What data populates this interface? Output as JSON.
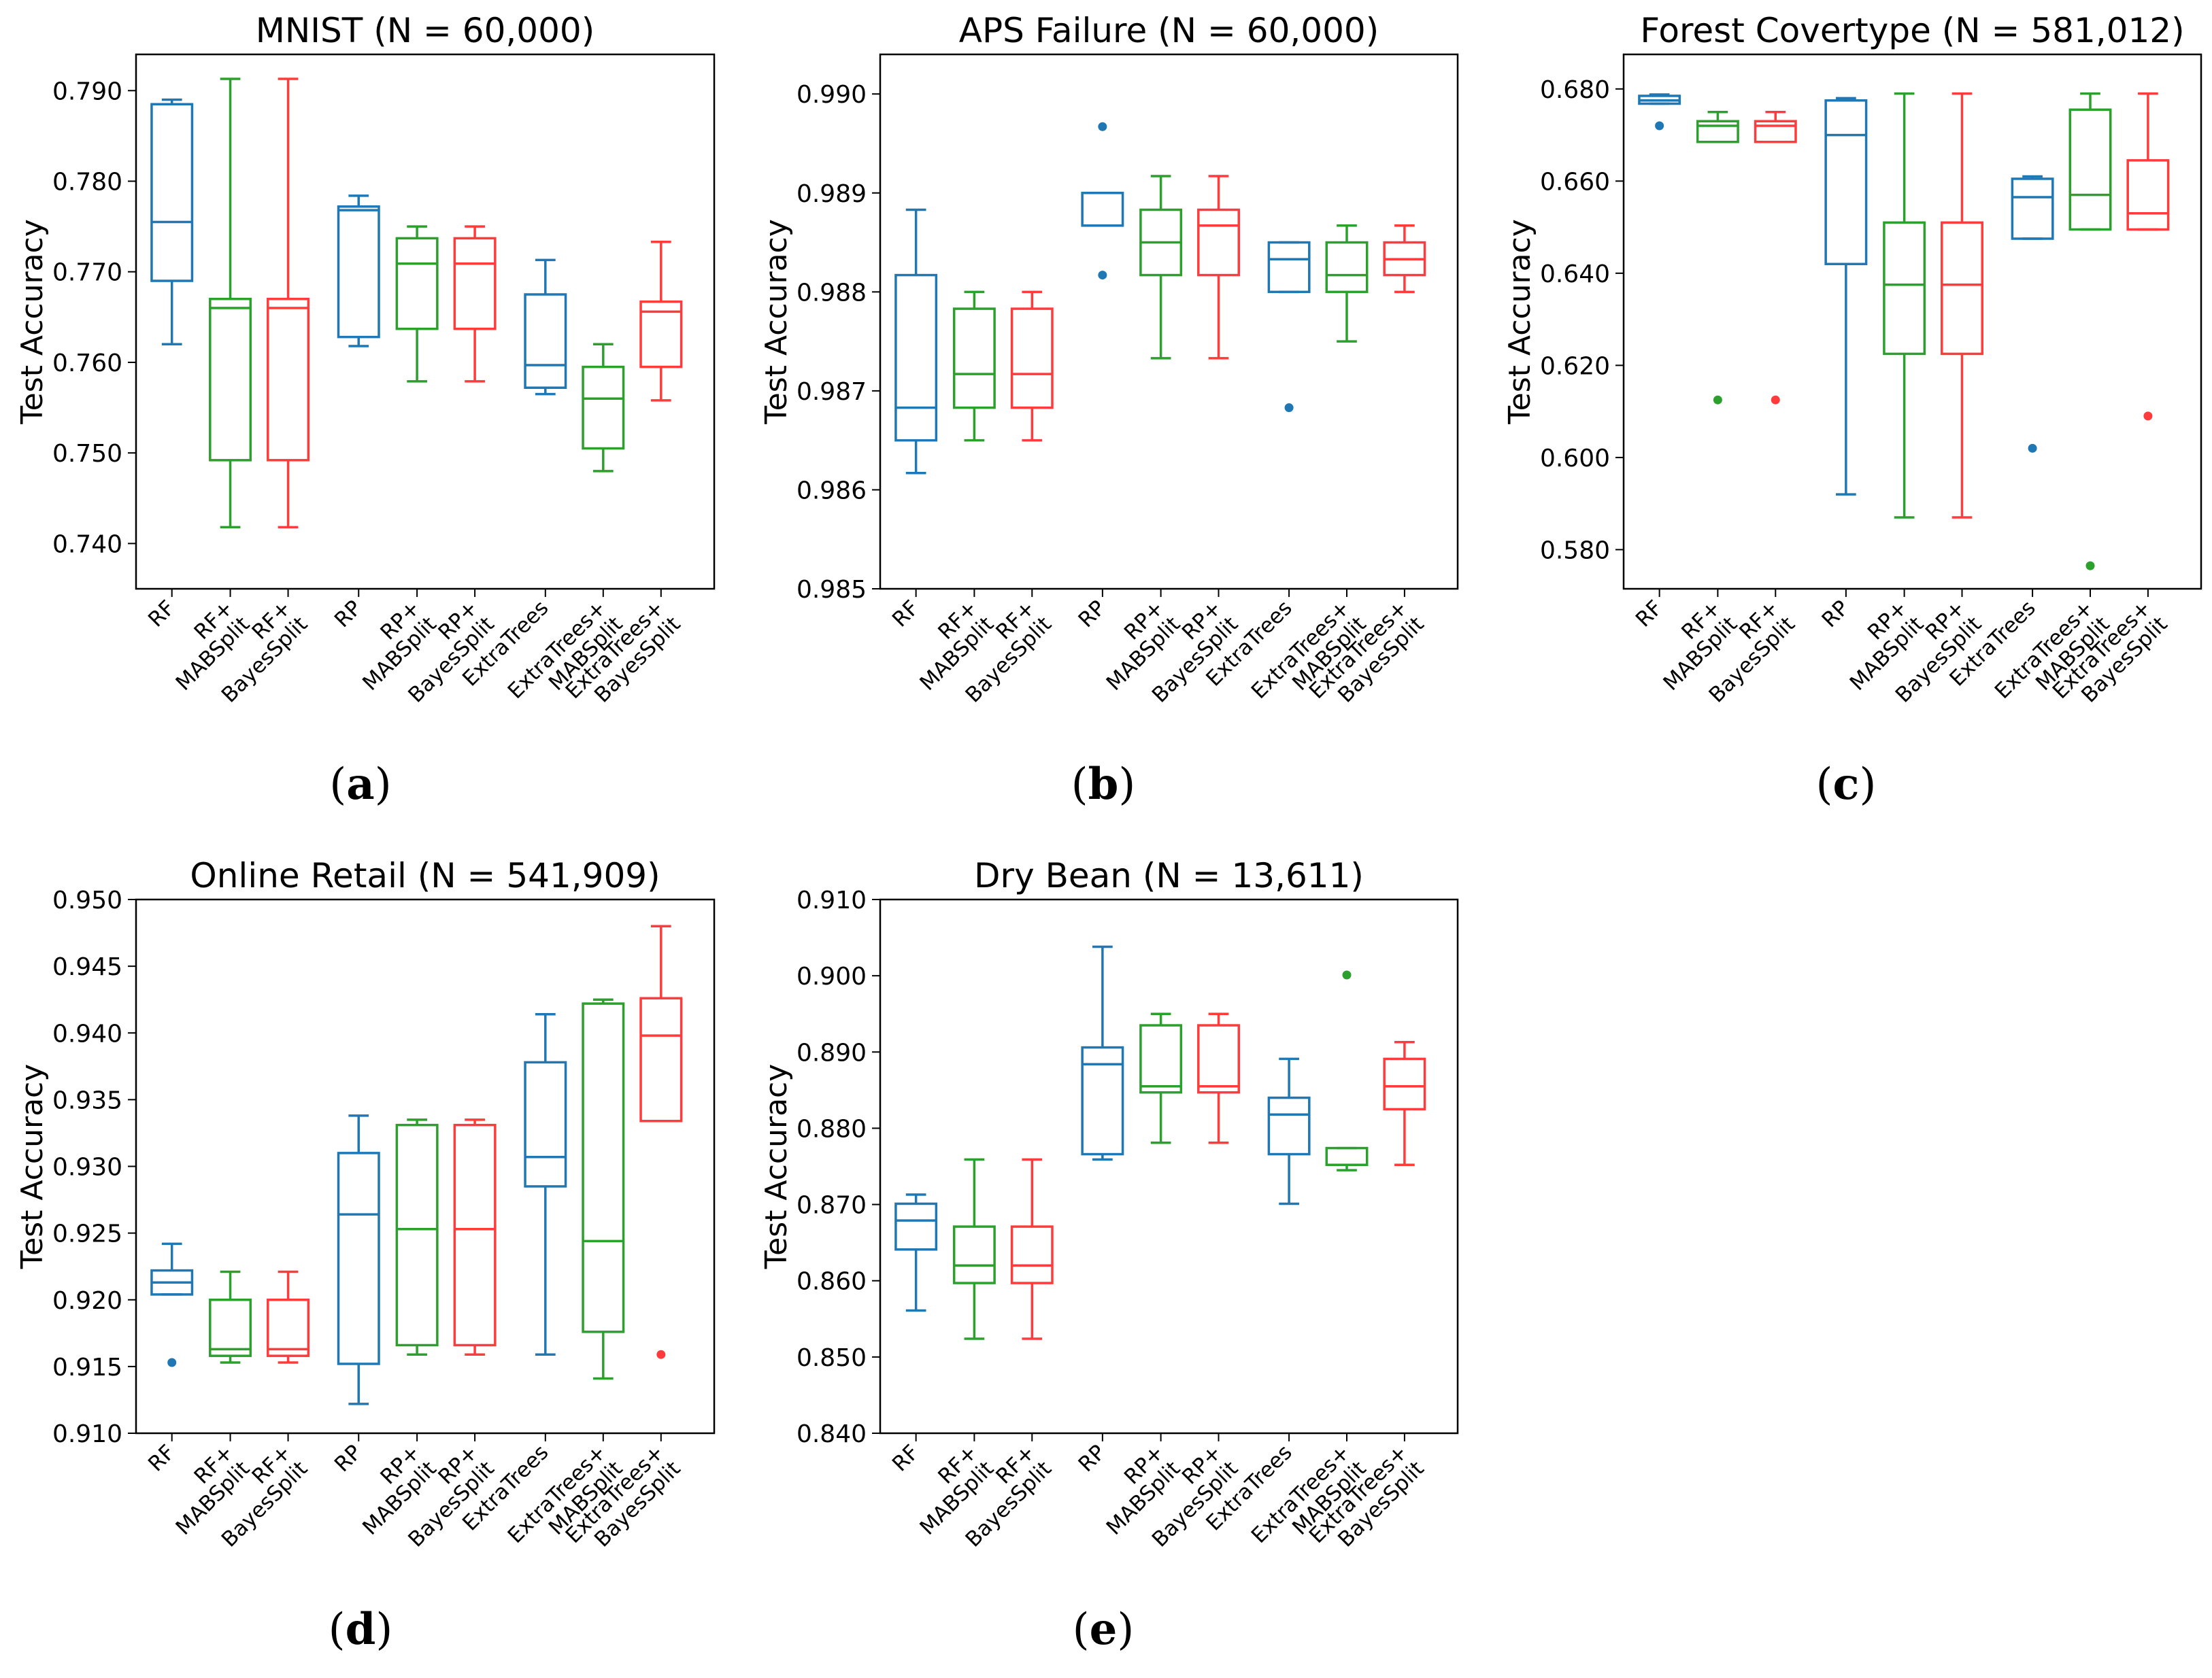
{
  "colors": {
    "rf_family": "#1f77b4",
    "mabsplit": "#2ca02c",
    "bayessplit": "#ff3b3b"
  },
  "chart_data": [
    {
      "type": "box",
      "panel_label": "a",
      "title": "MNIST (N = 60,000)",
      "ylabel": "Test Accuracy",
      "ylim": [
        0.735,
        0.794
      ],
      "yticks": [
        "0.740",
        "0.750",
        "0.760",
        "0.770",
        "0.780",
        "0.790"
      ],
      "yticks_val": [
        0.74,
        0.75,
        0.76,
        0.77,
        0.78,
        0.79
      ],
      "categories": [
        [
          "RF"
        ],
        [
          "RF+",
          "MABSplit"
        ],
        [
          "RF+",
          "BayesSplit"
        ],
        [
          "RP"
        ],
        [
          "RP+",
          "MABSplit"
        ],
        [
          "RP+",
          "BayesSplit"
        ],
        [
          "ExtraTrees"
        ],
        [
          "ExtraTrees+",
          "MABSplit"
        ],
        [
          "ExtraTrees+",
          "BayesSplit"
        ]
      ],
      "boxes": [
        {
          "color": "rf_family",
          "whislo": 0.762,
          "q1": 0.769,
          "med": 0.7755,
          "q3": 0.7885,
          "whishi": 0.789,
          "fliers": []
        },
        {
          "color": "mabsplit",
          "whislo": 0.7418,
          "q1": 0.7492,
          "med": 0.766,
          "q3": 0.767,
          "whishi": 0.7913,
          "fliers": []
        },
        {
          "color": "bayessplit",
          "whislo": 0.7418,
          "q1": 0.7492,
          "med": 0.766,
          "q3": 0.767,
          "whishi": 0.7913,
          "fliers": []
        },
        {
          "color": "rf_family",
          "whislo": 0.7618,
          "q1": 0.7628,
          "med": 0.7768,
          "q3": 0.7772,
          "whishi": 0.7784,
          "fliers": []
        },
        {
          "color": "mabsplit",
          "whislo": 0.7579,
          "q1": 0.7637,
          "med": 0.7709,
          "q3": 0.7737,
          "whishi": 0.775,
          "fliers": []
        },
        {
          "color": "bayessplit",
          "whislo": 0.7579,
          "q1": 0.7637,
          "med": 0.7709,
          "q3": 0.7737,
          "whishi": 0.775,
          "fliers": []
        },
        {
          "color": "rf_family",
          "whislo": 0.7565,
          "q1": 0.7572,
          "med": 0.7597,
          "q3": 0.7675,
          "whishi": 0.7713,
          "fliers": []
        },
        {
          "color": "mabsplit",
          "whislo": 0.748,
          "q1": 0.7505,
          "med": 0.756,
          "q3": 0.7595,
          "whishi": 0.762,
          "fliers": []
        },
        {
          "color": "bayessplit",
          "whislo": 0.7558,
          "q1": 0.7595,
          "med": 0.7656,
          "q3": 0.7667,
          "whishi": 0.7733,
          "fliers": []
        }
      ]
    },
    {
      "type": "box",
      "panel_label": "b",
      "title": "APS Failure (N = 60,000)",
      "ylabel": "Test Accuracy",
      "ylim": [
        0.985,
        0.9904
      ],
      "yticks": [
        "0.985",
        "0.986",
        "0.987",
        "0.988",
        "0.989",
        "0.990"
      ],
      "yticks_val": [
        0.985,
        0.986,
        0.987,
        0.988,
        0.989,
        0.99
      ],
      "categories": [
        [
          "RF"
        ],
        [
          "RF+",
          "MABSplit"
        ],
        [
          "RF+",
          "BayesSplit"
        ],
        [
          "RP"
        ],
        [
          "RP+",
          "MABSplit"
        ],
        [
          "RP+",
          "BayesSplit"
        ],
        [
          "ExtraTrees"
        ],
        [
          "ExtraTrees+",
          "MABSplit"
        ],
        [
          "ExtraTrees+",
          "BayesSplit"
        ]
      ],
      "boxes": [
        {
          "color": "rf_family",
          "whislo": 0.98617,
          "q1": 0.9865,
          "med": 0.98683,
          "q3": 0.98817,
          "whishi": 0.98883,
          "fliers": []
        },
        {
          "color": "mabsplit",
          "whislo": 0.9865,
          "q1": 0.98683,
          "med": 0.98717,
          "q3": 0.98783,
          "whishi": 0.988,
          "fliers": []
        },
        {
          "color": "bayessplit",
          "whislo": 0.9865,
          "q1": 0.98683,
          "med": 0.98717,
          "q3": 0.98783,
          "whishi": 0.988,
          "fliers": []
        },
        {
          "color": "rf_family",
          "whislo": 0.98867,
          "q1": 0.98867,
          "med": 0.98867,
          "q3": 0.989,
          "whishi": 0.989,
          "fliers": [
            0.98967,
            0.98817
          ]
        },
        {
          "color": "mabsplit",
          "whislo": 0.98733,
          "q1": 0.98817,
          "med": 0.9885,
          "q3": 0.98883,
          "whishi": 0.98917,
          "fliers": []
        },
        {
          "color": "bayessplit",
          "whislo": 0.98733,
          "q1": 0.98817,
          "med": 0.98867,
          "q3": 0.98883,
          "whishi": 0.98917,
          "fliers": []
        },
        {
          "color": "rf_family",
          "whislo": 0.988,
          "q1": 0.988,
          "med": 0.98833,
          "q3": 0.9885,
          "whishi": 0.9885,
          "fliers": [
            0.98683
          ]
        },
        {
          "color": "mabsplit",
          "whislo": 0.9875,
          "q1": 0.988,
          "med": 0.98817,
          "q3": 0.9885,
          "whishi": 0.98867,
          "fliers": []
        },
        {
          "color": "bayessplit",
          "whislo": 0.988,
          "q1": 0.98817,
          "med": 0.98833,
          "q3": 0.9885,
          "whishi": 0.98867,
          "fliers": []
        }
      ]
    },
    {
      "type": "box",
      "panel_label": "c",
      "title": "Forest Covertype (N = 581,012)",
      "ylabel": "Test Accuracy",
      "ylim": [
        0.5715,
        0.6875
      ],
      "yticks": [
        "0.580",
        "0.600",
        "0.620",
        "0.640",
        "0.660",
        "0.680"
      ],
      "yticks_val": [
        0.58,
        0.6,
        0.62,
        0.64,
        0.66,
        0.68
      ],
      "categories": [
        [
          "RF"
        ],
        [
          "RF+",
          "MABSplit"
        ],
        [
          "RF+",
          "BayesSplit"
        ],
        [
          "RP"
        ],
        [
          "RP+",
          "MABSplit"
        ],
        [
          "RP+",
          "BayesSplit"
        ],
        [
          "ExtraTrees"
        ],
        [
          "ExtraTrees+",
          "MABSplit"
        ],
        [
          "ExtraTrees+",
          "BayesSplit"
        ]
      ],
      "boxes": [
        {
          "color": "rf_family",
          "whislo": 0.6768,
          "q1": 0.6768,
          "med": 0.6775,
          "q3": 0.6785,
          "whishi": 0.6788,
          "fliers": [
            0.672
          ]
        },
        {
          "color": "mabsplit",
          "whislo": 0.6685,
          "q1": 0.6685,
          "med": 0.672,
          "q3": 0.673,
          "whishi": 0.675,
          "fliers": [
            0.6125
          ]
        },
        {
          "color": "bayessplit",
          "whislo": 0.6685,
          "q1": 0.6685,
          "med": 0.672,
          "q3": 0.673,
          "whishi": 0.675,
          "fliers": [
            0.6125
          ]
        },
        {
          "color": "rf_family",
          "whislo": 0.592,
          "q1": 0.642,
          "med": 0.67,
          "q3": 0.6775,
          "whishi": 0.678,
          "fliers": []
        },
        {
          "color": "mabsplit",
          "whislo": 0.587,
          "q1": 0.6225,
          "med": 0.6375,
          "q3": 0.651,
          "whishi": 0.679,
          "fliers": []
        },
        {
          "color": "bayessplit",
          "whislo": 0.587,
          "q1": 0.6225,
          "med": 0.6375,
          "q3": 0.651,
          "whishi": 0.679,
          "fliers": []
        },
        {
          "color": "rf_family",
          "whislo": 0.6475,
          "q1": 0.6475,
          "med": 0.6565,
          "q3": 0.6605,
          "whishi": 0.661,
          "fliers": [
            0.602
          ]
        },
        {
          "color": "mabsplit",
          "whislo": 0.6495,
          "q1": 0.6495,
          "med": 0.657,
          "q3": 0.6755,
          "whishi": 0.679,
          "fliers": [
            0.5765
          ]
        },
        {
          "color": "bayessplit",
          "whislo": 0.6495,
          "q1": 0.6495,
          "med": 0.653,
          "q3": 0.6645,
          "whishi": 0.679,
          "fliers": [
            0.609
          ]
        }
      ]
    },
    {
      "type": "box",
      "panel_label": "d",
      "title": "Online Retail (N = 541,909)",
      "ylabel": "Test Accuracy",
      "ylim": [
        0.91,
        0.95
      ],
      "yticks": [
        "0.910",
        "0.915",
        "0.920",
        "0.925",
        "0.930",
        "0.935",
        "0.940",
        "0.945",
        "0.950"
      ],
      "yticks_val": [
        0.91,
        0.915,
        0.92,
        0.925,
        0.93,
        0.935,
        0.94,
        0.945,
        0.95
      ],
      "categories": [
        [
          "RF"
        ],
        [
          "RF+",
          "MABSplit"
        ],
        [
          "RF+",
          "BayesSplit"
        ],
        [
          "RP"
        ],
        [
          "RP+",
          "MABSplit"
        ],
        [
          "RP+",
          "BayesSplit"
        ],
        [
          "ExtraTrees"
        ],
        [
          "ExtraTrees+",
          "MABSplit"
        ],
        [
          "ExtraTrees+",
          "BayesSplit"
        ]
      ],
      "boxes": [
        {
          "color": "rf_family",
          "whislo": 0.9204,
          "q1": 0.9204,
          "med": 0.9213,
          "q3": 0.9222,
          "whishi": 0.9242,
          "fliers": [
            0.9153
          ]
        },
        {
          "color": "mabsplit",
          "whislo": 0.9153,
          "q1": 0.9158,
          "med": 0.9163,
          "q3": 0.92,
          "whishi": 0.9221,
          "fliers": []
        },
        {
          "color": "bayessplit",
          "whislo": 0.9153,
          "q1": 0.9158,
          "med": 0.9163,
          "q3": 0.92,
          "whishi": 0.9221,
          "fliers": []
        },
        {
          "color": "rf_family",
          "whislo": 0.9122,
          "q1": 0.9152,
          "med": 0.9264,
          "q3": 0.931,
          "whishi": 0.9338,
          "fliers": []
        },
        {
          "color": "mabsplit",
          "whislo": 0.9159,
          "q1": 0.9166,
          "med": 0.9253,
          "q3": 0.9331,
          "whishi": 0.9335,
          "fliers": []
        },
        {
          "color": "bayessplit",
          "whislo": 0.9159,
          "q1": 0.9166,
          "med": 0.9253,
          "q3": 0.9331,
          "whishi": 0.9335,
          "fliers": []
        },
        {
          "color": "rf_family",
          "whislo": 0.9159,
          "q1": 0.9285,
          "med": 0.9307,
          "q3": 0.9378,
          "whishi": 0.9414,
          "fliers": []
        },
        {
          "color": "mabsplit",
          "whislo": 0.9141,
          "q1": 0.9176,
          "med": 0.9244,
          "q3": 0.9422,
          "whishi": 0.9425,
          "fliers": []
        },
        {
          "color": "bayessplit",
          "whislo": 0.9334,
          "q1": 0.9334,
          "med": 0.9398,
          "q3": 0.9426,
          "whishi": 0.948,
          "fliers": [
            0.9159
          ]
        }
      ]
    },
    {
      "type": "box",
      "panel_label": "e",
      "title": "Dry Bean (N = 13,611)",
      "ylabel": "Test Accuracy",
      "ylim": [
        0.84,
        0.91
      ],
      "yticks": [
        "0.840",
        "0.850",
        "0.860",
        "0.870",
        "0.880",
        "0.890",
        "0.900",
        "0.910"
      ],
      "yticks_val": [
        0.84,
        0.85,
        0.86,
        0.87,
        0.88,
        0.89,
        0.9,
        0.91
      ],
      "categories": [
        [
          "RF"
        ],
        [
          "RF+",
          "MABSplit"
        ],
        [
          "RF+",
          "BayesSplit"
        ],
        [
          "RP"
        ],
        [
          "RP+",
          "MABSplit"
        ],
        [
          "RP+",
          "BayesSplit"
        ],
        [
          "ExtraTrees"
        ],
        [
          "ExtraTrees+",
          "MABSplit"
        ],
        [
          "ExtraTrees+",
          "BayesSplit"
        ]
      ],
      "boxes": [
        {
          "color": "rf_family",
          "whislo": 0.8561,
          "q1": 0.8641,
          "med": 0.8679,
          "q3": 0.8701,
          "whishi": 0.8713,
          "fliers": []
        },
        {
          "color": "mabsplit",
          "whislo": 0.8524,
          "q1": 0.8597,
          "med": 0.862,
          "q3": 0.8671,
          "whishi": 0.8759,
          "fliers": []
        },
        {
          "color": "bayessplit",
          "whislo": 0.8524,
          "q1": 0.8597,
          "med": 0.862,
          "q3": 0.8671,
          "whishi": 0.8759,
          "fliers": []
        },
        {
          "color": "rf_family",
          "whislo": 0.8759,
          "q1": 0.8766,
          "med": 0.8884,
          "q3": 0.8906,
          "whishi": 0.9038,
          "fliers": []
        },
        {
          "color": "mabsplit",
          "whislo": 0.8781,
          "q1": 0.8847,
          "med": 0.8855,
          "q3": 0.8935,
          "whishi": 0.895,
          "fliers": []
        },
        {
          "color": "bayessplit",
          "whislo": 0.8781,
          "q1": 0.8847,
          "med": 0.8855,
          "q3": 0.8935,
          "whishi": 0.895,
          "fliers": []
        },
        {
          "color": "rf_family",
          "whislo": 0.8701,
          "q1": 0.8766,
          "med": 0.8818,
          "q3": 0.884,
          "whishi": 0.8891,
          "fliers": []
        },
        {
          "color": "mabsplit",
          "whislo": 0.8745,
          "q1": 0.8752,
          "med": 0.8752,
          "q3": 0.8774,
          "whishi": 0.8774,
          "fliers": [
            0.9001
          ]
        },
        {
          "color": "bayessplit",
          "whislo": 0.8752,
          "q1": 0.8825,
          "med": 0.8855,
          "q3": 0.8891,
          "whishi": 0.8913,
          "fliers": []
        }
      ]
    }
  ]
}
